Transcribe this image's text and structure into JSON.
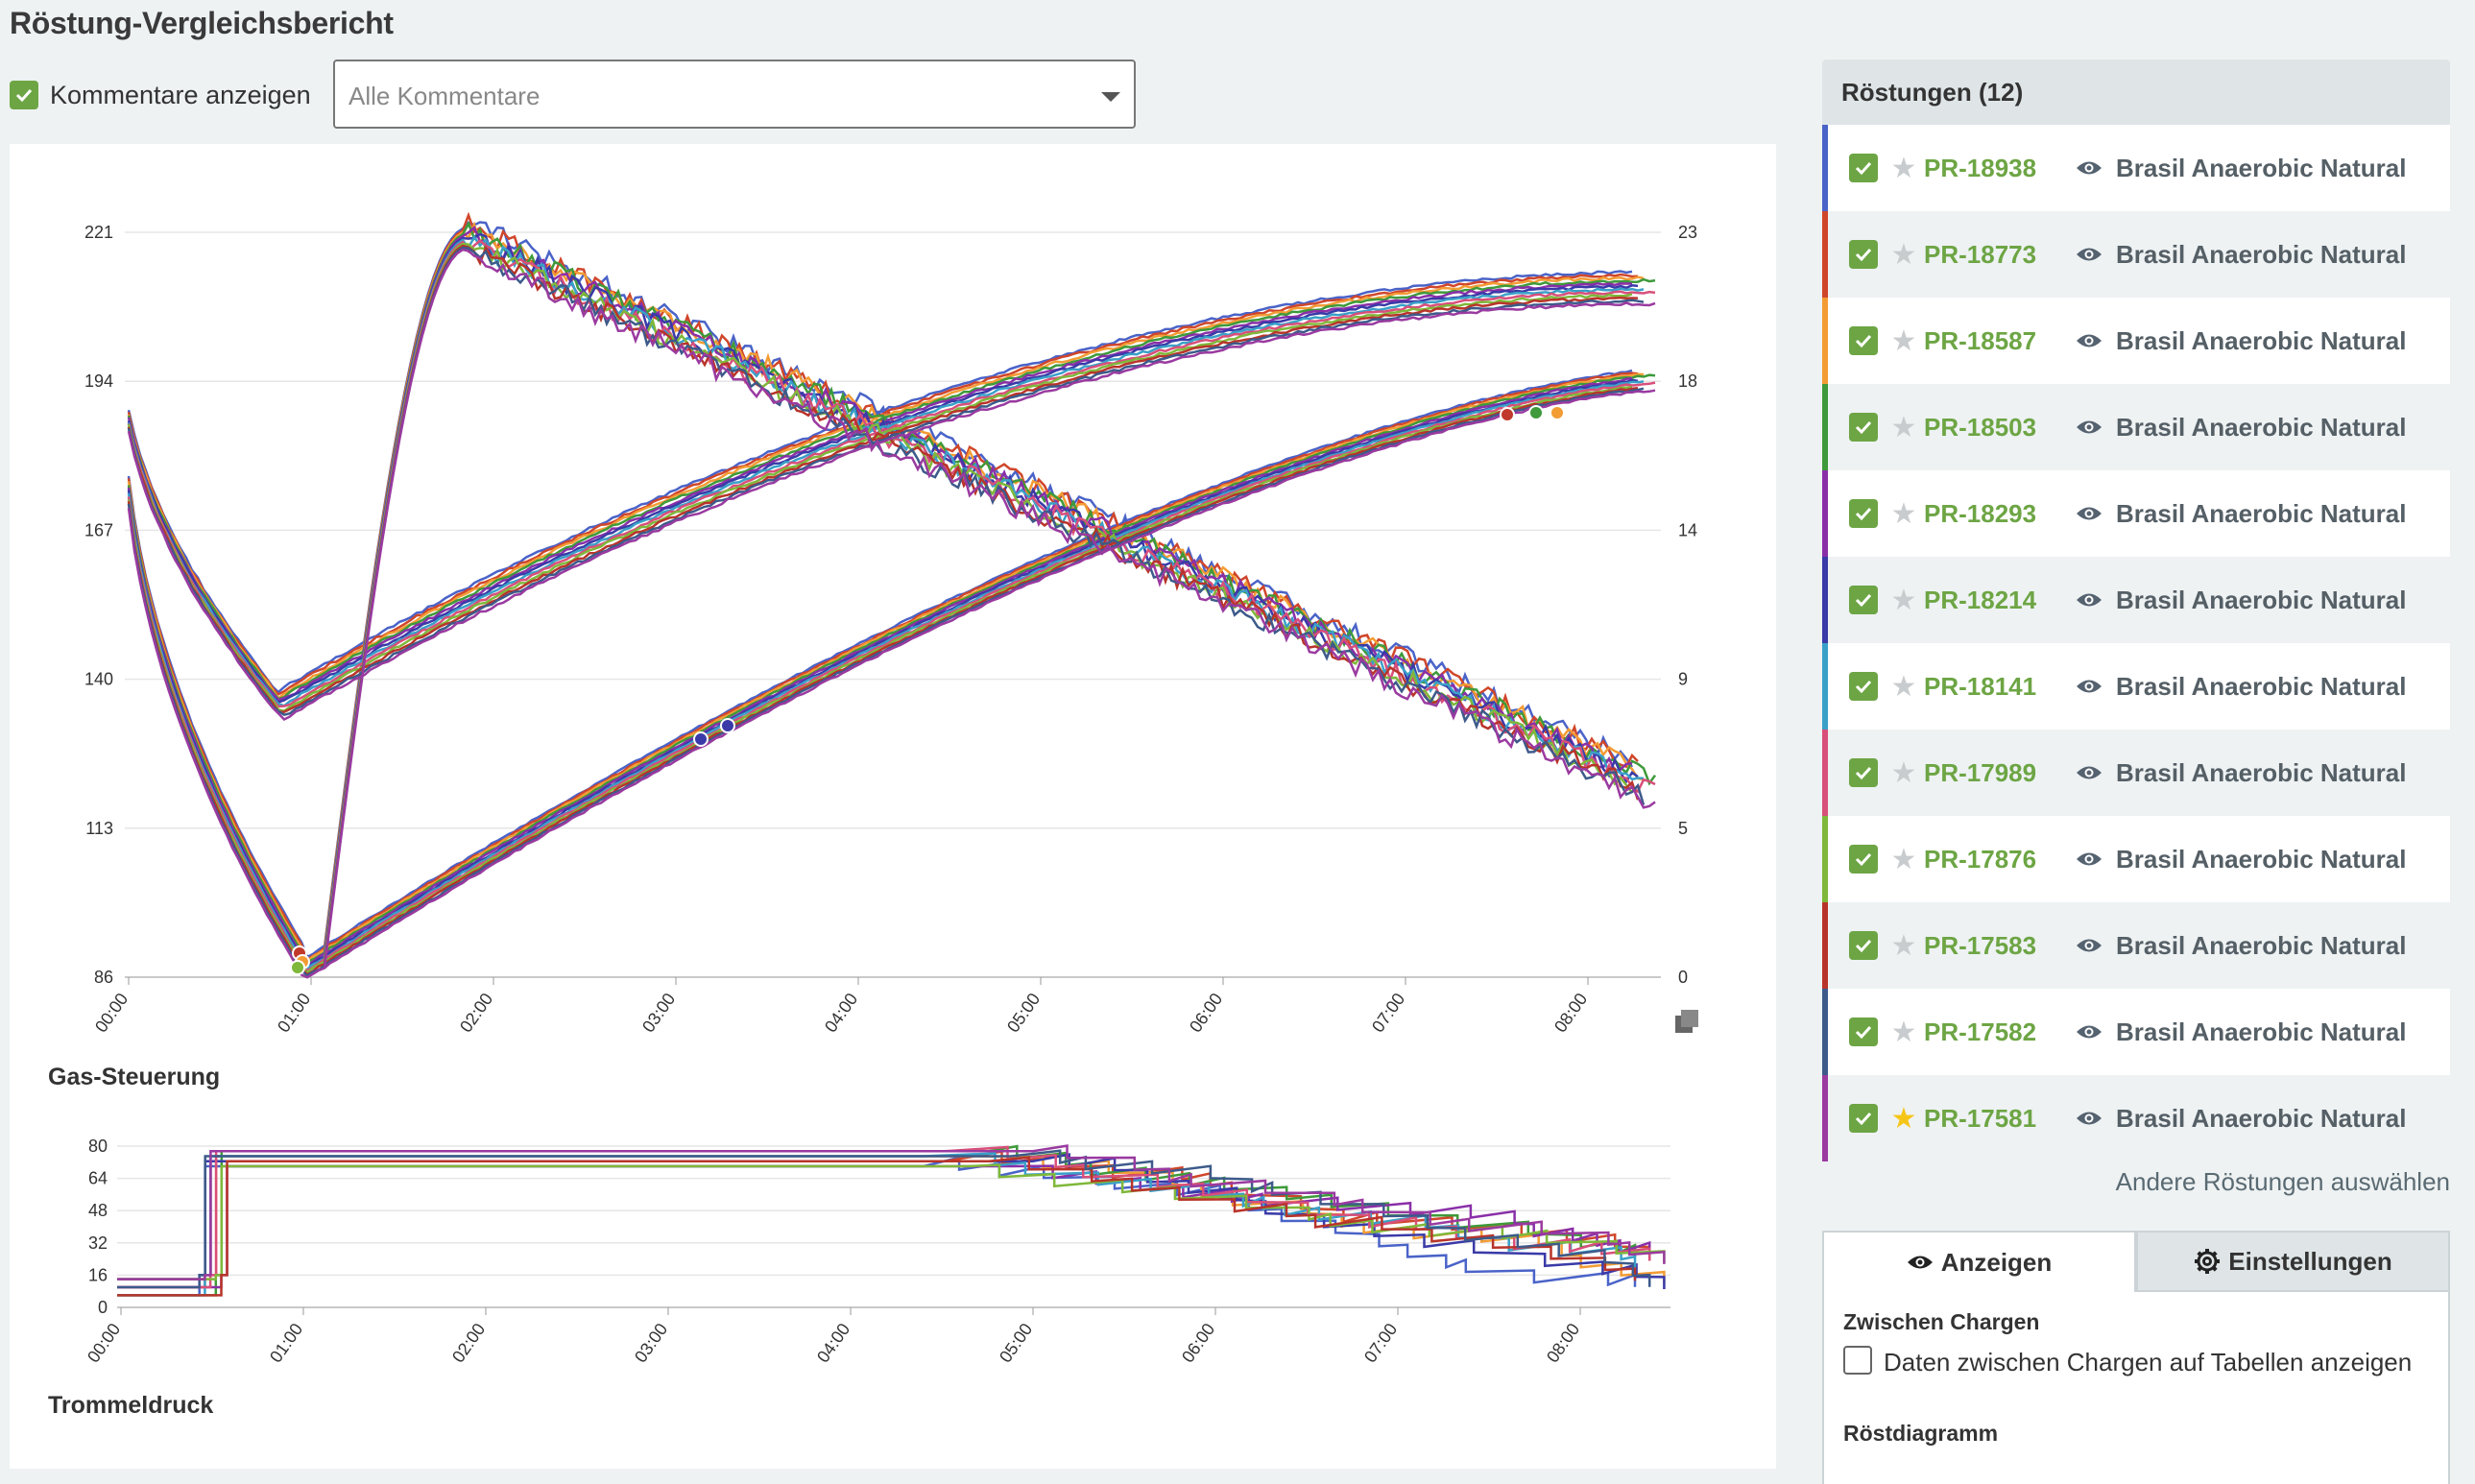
{
  "page": {
    "title": "Röstung-Vergleichsbericht"
  },
  "comments": {
    "checkbox_label": "Kommentare anzeigen",
    "dropdown_value": "Alle Kommentare"
  },
  "main_chart": {
    "left_ticks": [
      "221",
      "194",
      "167",
      "140",
      "113",
      "86"
    ],
    "right_ticks": [
      "23",
      "18",
      "14",
      "9",
      "5",
      "0"
    ],
    "x_ticks": [
      "00:00",
      "01:00",
      "02:00",
      "03:00",
      "04:00",
      "05:00",
      "06:00",
      "07:00",
      "08:00"
    ]
  },
  "gas_chart": {
    "title": "Gas-Steuerung",
    "y_ticks": [
      "80",
      "64",
      "48",
      "32",
      "16",
      "0"
    ],
    "x_ticks": [
      "00:00",
      "01:00",
      "02:00",
      "03:00",
      "04:00",
      "05:00",
      "06:00",
      "07:00",
      "08:00"
    ]
  },
  "drum_section": {
    "title": "Trommeldruck"
  },
  "roasts_panel": {
    "title": "Röstungen (12)",
    "items": [
      {
        "id": "PR-18938",
        "name": "Brasil Anaerobic Natural",
        "color": "#4a63c8",
        "favorite": false
      },
      {
        "id": "PR-18773",
        "name": "Brasil Anaerobic Natural",
        "color": "#d0462b",
        "favorite": false
      },
      {
        "id": "PR-18587",
        "name": "Brasil Anaerobic Natural",
        "color": "#f39c34",
        "favorite": false
      },
      {
        "id": "PR-18503",
        "name": "Brasil Anaerobic Natural",
        "color": "#3e9a3a",
        "favorite": false
      },
      {
        "id": "PR-18293",
        "name": "Brasil Anaerobic Natural",
        "color": "#8a2fa8",
        "favorite": false
      },
      {
        "id": "PR-18214",
        "name": "Brasil Anaerobic Natural",
        "color": "#3a3aa8",
        "favorite": false
      },
      {
        "id": "PR-18141",
        "name": "Brasil Anaerobic Natural",
        "color": "#3aa0c8",
        "favorite": false
      },
      {
        "id": "PR-17989",
        "name": "Brasil Anaerobic Natural",
        "color": "#d84f7a",
        "favorite": false
      },
      {
        "id": "PR-17876",
        "name": "Brasil Anaerobic Natural",
        "color": "#7fb83a",
        "favorite": false
      },
      {
        "id": "PR-17583",
        "name": "Brasil Anaerobic Natural",
        "color": "#b8342a",
        "favorite": false
      },
      {
        "id": "PR-17582",
        "name": "Brasil Anaerobic Natural",
        "color": "#3d5a8a",
        "favorite": false
      },
      {
        "id": "PR-17581",
        "name": "Brasil Anaerobic Natural",
        "color": "#9a3aa0",
        "favorite": true
      }
    ],
    "other_link": "Andere Röstungen auswählen"
  },
  "tabs": {
    "show_label": "Anzeigen",
    "settings_label": "Einstellungen"
  },
  "tab_panel": {
    "between_batches_heading": "Zwischen Chargen",
    "between_batches_option": "Daten zwischen Chargen auf Tabellen anzeigen",
    "roast_chart_heading": "Röstdiagramm"
  }
}
